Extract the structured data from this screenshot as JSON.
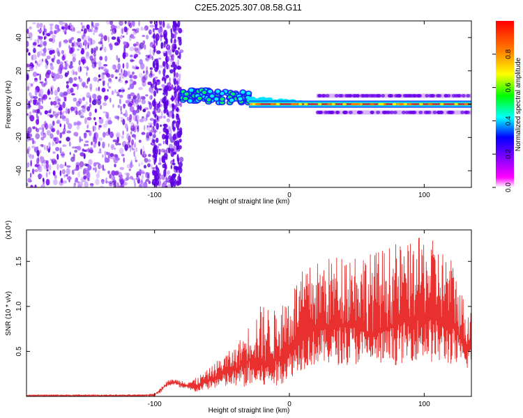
{
  "chart_data": [
    {
      "type": "heatmap",
      "title": "C2E5.2025.307.08.58.G11",
      "xlabel": "Height of straight line (km)",
      "ylabel": "Frequency (Hz)",
      "xlim": [
        -195,
        135
      ],
      "ylim": [
        -50,
        50
      ],
      "x_ticks": [
        -100,
        0,
        100
      ],
      "y_ticks": [
        -40,
        -20,
        0,
        20,
        40
      ],
      "colorbar": {
        "label": "Normalized spectral amplitude",
        "range": [
          0,
          1
        ],
        "ticks": [
          "0.0",
          "0.2",
          "0.4",
          "0.6",
          "0.8"
        ],
        "colormap": [
          "#ffffff",
          "#ff00ff",
          "#8000ff",
          "#0000ff",
          "#00ffff",
          "#00ff00",
          "#ffff00",
          "#ff8000",
          "#ff0000"
        ]
      },
      "regions": [
        {
          "x": [
            -195,
            -80
          ],
          "freq_range": [
            -50,
            50
          ],
          "amplitude": [
            0.0,
            0.15
          ],
          "description_color": "purple"
        },
        {
          "x": [
            -80,
            -30
          ],
          "freq_range": [
            0,
            12
          ],
          "amplitude": [
            0.3,
            0.7
          ]
        },
        {
          "x": [
            -30,
            135
          ],
          "freq_center": 0,
          "amplitude": [
            0.8,
            1.0
          ]
        },
        {
          "x": [
            20,
            135
          ],
          "freq_center": 5,
          "amplitude": [
            0.1,
            0.2
          ]
        },
        {
          "x": [
            20,
            135
          ],
          "freq_center": -5,
          "amplitude": [
            0.1,
            0.2
          ]
        }
      ]
    },
    {
      "type": "line",
      "title": "",
      "xlabel": "Height of straight line (km)",
      "ylabel": "SNR (10 * v/v)",
      "yscale_label": "(x10⁴)",
      "xlim": [
        -195,
        135
      ],
      "ylim": [
        0,
        1.85
      ],
      "x_ticks": [
        -100,
        0,
        100
      ],
      "y_ticks": [
        0.5,
        1.0,
        1.5
      ],
      "y_tick_labels": [
        "0.5",
        "1.0",
        "1.5"
      ],
      "color": "#e8302f",
      "series": [
        {
          "x": [
            -195,
            -150,
            -110,
            -100,
            -95,
            -90,
            -85,
            -80,
            -70,
            -60,
            -50,
            -40,
            -30,
            -20,
            -10,
            0,
            10,
            20,
            30,
            40,
            50,
            60,
            70,
            80,
            90,
            100,
            110,
            120,
            125,
            130,
            135
          ],
          "mean": [
            0.01,
            0.01,
            0.01,
            0.02,
            0.08,
            0.15,
            0.16,
            0.13,
            0.1,
            0.18,
            0.25,
            0.3,
            0.4,
            0.35,
            0.4,
            0.5,
            0.7,
            0.75,
            0.75,
            0.8,
            0.8,
            0.7,
            0.75,
            0.8,
            0.85,
            0.9,
            0.85,
            0.8,
            0.7,
            0.55,
            0.6
          ],
          "low": [
            0.0,
            0.0,
            0.0,
            0.0,
            0.05,
            0.12,
            0.12,
            0.08,
            0.05,
            0.08,
            0.1,
            0.1,
            0.1,
            0.1,
            0.1,
            0.2,
            0.3,
            0.35,
            0.35,
            0.35,
            0.35,
            0.35,
            0.35,
            0.35,
            0.4,
            0.4,
            0.35,
            0.35,
            0.3,
            0.3,
            0.3
          ],
          "high": [
            0.02,
            0.02,
            0.02,
            0.03,
            0.1,
            0.18,
            0.19,
            0.18,
            0.2,
            0.3,
            0.45,
            0.55,
            0.8,
            1.05,
            0.95,
            1.2,
            1.4,
            1.5,
            1.55,
            1.6,
            1.65,
            1.6,
            1.65,
            1.7,
            1.7,
            1.8,
            1.7,
            1.55,
            1.35,
            1.05,
            1.1
          ]
        }
      ]
    }
  ]
}
